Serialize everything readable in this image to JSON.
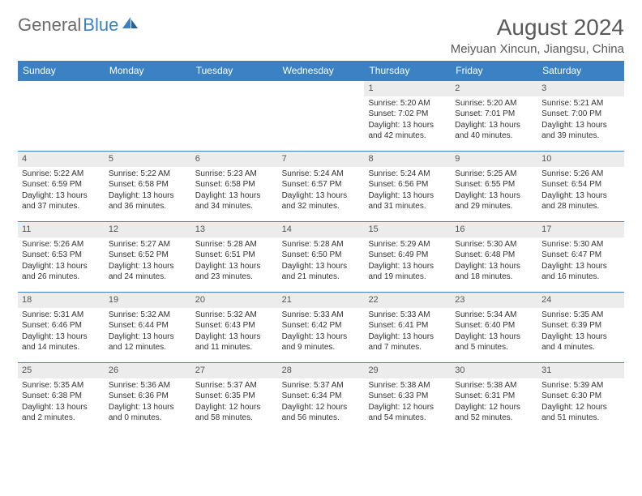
{
  "logo": {
    "text1": "General",
    "text2": "Blue"
  },
  "title": "August 2024",
  "location": "Meiyuan Xincun, Jiangsu, China",
  "accent_color": "#3b82c4",
  "header_bg": "#3b82c4",
  "day_bar_bg": "#ececec",
  "days_of_week": [
    "Sunday",
    "Monday",
    "Tuesday",
    "Wednesday",
    "Thursday",
    "Friday",
    "Saturday"
  ],
  "weeks": [
    [
      null,
      null,
      null,
      null,
      {
        "n": "1",
        "sr": "5:20 AM",
        "ss": "7:02 PM",
        "dl": "13 hours and 42 minutes."
      },
      {
        "n": "2",
        "sr": "5:20 AM",
        "ss": "7:01 PM",
        "dl": "13 hours and 40 minutes."
      },
      {
        "n": "3",
        "sr": "5:21 AM",
        "ss": "7:00 PM",
        "dl": "13 hours and 39 minutes."
      }
    ],
    [
      {
        "n": "4",
        "sr": "5:22 AM",
        "ss": "6:59 PM",
        "dl": "13 hours and 37 minutes."
      },
      {
        "n": "5",
        "sr": "5:22 AM",
        "ss": "6:58 PM",
        "dl": "13 hours and 36 minutes."
      },
      {
        "n": "6",
        "sr": "5:23 AM",
        "ss": "6:58 PM",
        "dl": "13 hours and 34 minutes."
      },
      {
        "n": "7",
        "sr": "5:24 AM",
        "ss": "6:57 PM",
        "dl": "13 hours and 32 minutes."
      },
      {
        "n": "8",
        "sr": "5:24 AM",
        "ss": "6:56 PM",
        "dl": "13 hours and 31 minutes."
      },
      {
        "n": "9",
        "sr": "5:25 AM",
        "ss": "6:55 PM",
        "dl": "13 hours and 29 minutes."
      },
      {
        "n": "10",
        "sr": "5:26 AM",
        "ss": "6:54 PM",
        "dl": "13 hours and 28 minutes."
      }
    ],
    [
      {
        "n": "11",
        "sr": "5:26 AM",
        "ss": "6:53 PM",
        "dl": "13 hours and 26 minutes."
      },
      {
        "n": "12",
        "sr": "5:27 AM",
        "ss": "6:52 PM",
        "dl": "13 hours and 24 minutes."
      },
      {
        "n": "13",
        "sr": "5:28 AM",
        "ss": "6:51 PM",
        "dl": "13 hours and 23 minutes."
      },
      {
        "n": "14",
        "sr": "5:28 AM",
        "ss": "6:50 PM",
        "dl": "13 hours and 21 minutes."
      },
      {
        "n": "15",
        "sr": "5:29 AM",
        "ss": "6:49 PM",
        "dl": "13 hours and 19 minutes."
      },
      {
        "n": "16",
        "sr": "5:30 AM",
        "ss": "6:48 PM",
        "dl": "13 hours and 18 minutes."
      },
      {
        "n": "17",
        "sr": "5:30 AM",
        "ss": "6:47 PM",
        "dl": "13 hours and 16 minutes."
      }
    ],
    [
      {
        "n": "18",
        "sr": "5:31 AM",
        "ss": "6:46 PM",
        "dl": "13 hours and 14 minutes."
      },
      {
        "n": "19",
        "sr": "5:32 AM",
        "ss": "6:44 PM",
        "dl": "13 hours and 12 minutes."
      },
      {
        "n": "20",
        "sr": "5:32 AM",
        "ss": "6:43 PM",
        "dl": "13 hours and 11 minutes."
      },
      {
        "n": "21",
        "sr": "5:33 AM",
        "ss": "6:42 PM",
        "dl": "13 hours and 9 minutes."
      },
      {
        "n": "22",
        "sr": "5:33 AM",
        "ss": "6:41 PM",
        "dl": "13 hours and 7 minutes."
      },
      {
        "n": "23",
        "sr": "5:34 AM",
        "ss": "6:40 PM",
        "dl": "13 hours and 5 minutes."
      },
      {
        "n": "24",
        "sr": "5:35 AM",
        "ss": "6:39 PM",
        "dl": "13 hours and 4 minutes."
      }
    ],
    [
      {
        "n": "25",
        "sr": "5:35 AM",
        "ss": "6:38 PM",
        "dl": "13 hours and 2 minutes."
      },
      {
        "n": "26",
        "sr": "5:36 AM",
        "ss": "6:36 PM",
        "dl": "13 hours and 0 minutes."
      },
      {
        "n": "27",
        "sr": "5:37 AM",
        "ss": "6:35 PM",
        "dl": "12 hours and 58 minutes."
      },
      {
        "n": "28",
        "sr": "5:37 AM",
        "ss": "6:34 PM",
        "dl": "12 hours and 56 minutes."
      },
      {
        "n": "29",
        "sr": "5:38 AM",
        "ss": "6:33 PM",
        "dl": "12 hours and 54 minutes."
      },
      {
        "n": "30",
        "sr": "5:38 AM",
        "ss": "6:31 PM",
        "dl": "12 hours and 52 minutes."
      },
      {
        "n": "31",
        "sr": "5:39 AM",
        "ss": "6:30 PM",
        "dl": "12 hours and 51 minutes."
      }
    ]
  ],
  "labels": {
    "sunrise": "Sunrise:",
    "sunset": "Sunset:",
    "daylight": "Daylight:"
  }
}
